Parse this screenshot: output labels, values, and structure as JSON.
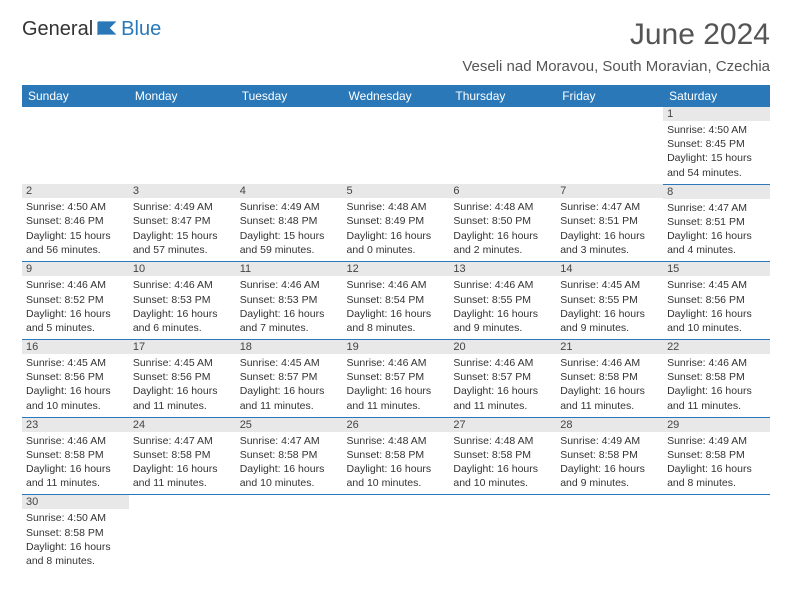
{
  "logo": {
    "part1": "General",
    "part2": "Blue"
  },
  "title": "June 2024",
  "location": "Veseli nad Moravou, South Moravian, Czechia",
  "colors": {
    "header_bg": "#2a78b8",
    "header_text": "#ffffff",
    "daynum_bg": "#e8e8e8",
    "border": "#2a78b8",
    "text": "#333333"
  },
  "weekdays": [
    "Sunday",
    "Monday",
    "Tuesday",
    "Wednesday",
    "Thursday",
    "Friday",
    "Saturday"
  ],
  "weeks": [
    [
      null,
      null,
      null,
      null,
      null,
      null,
      {
        "n": "1",
        "sr": "Sunrise: 4:50 AM",
        "ss": "Sunset: 8:45 PM",
        "dl": "Daylight: 15 hours and 54 minutes."
      }
    ],
    [
      {
        "n": "2",
        "sr": "Sunrise: 4:50 AM",
        "ss": "Sunset: 8:46 PM",
        "dl": "Daylight: 15 hours and 56 minutes."
      },
      {
        "n": "3",
        "sr": "Sunrise: 4:49 AM",
        "ss": "Sunset: 8:47 PM",
        "dl": "Daylight: 15 hours and 57 minutes."
      },
      {
        "n": "4",
        "sr": "Sunrise: 4:49 AM",
        "ss": "Sunset: 8:48 PM",
        "dl": "Daylight: 15 hours and 59 minutes."
      },
      {
        "n": "5",
        "sr": "Sunrise: 4:48 AM",
        "ss": "Sunset: 8:49 PM",
        "dl": "Daylight: 16 hours and 0 minutes."
      },
      {
        "n": "6",
        "sr": "Sunrise: 4:48 AM",
        "ss": "Sunset: 8:50 PM",
        "dl": "Daylight: 16 hours and 2 minutes."
      },
      {
        "n": "7",
        "sr": "Sunrise: 4:47 AM",
        "ss": "Sunset: 8:51 PM",
        "dl": "Daylight: 16 hours and 3 minutes."
      },
      {
        "n": "8",
        "sr": "Sunrise: 4:47 AM",
        "ss": "Sunset: 8:51 PM",
        "dl": "Daylight: 16 hours and 4 minutes."
      }
    ],
    [
      {
        "n": "9",
        "sr": "Sunrise: 4:46 AM",
        "ss": "Sunset: 8:52 PM",
        "dl": "Daylight: 16 hours and 5 minutes."
      },
      {
        "n": "10",
        "sr": "Sunrise: 4:46 AM",
        "ss": "Sunset: 8:53 PM",
        "dl": "Daylight: 16 hours and 6 minutes."
      },
      {
        "n": "11",
        "sr": "Sunrise: 4:46 AM",
        "ss": "Sunset: 8:53 PM",
        "dl": "Daylight: 16 hours and 7 minutes."
      },
      {
        "n": "12",
        "sr": "Sunrise: 4:46 AM",
        "ss": "Sunset: 8:54 PM",
        "dl": "Daylight: 16 hours and 8 minutes."
      },
      {
        "n": "13",
        "sr": "Sunrise: 4:46 AM",
        "ss": "Sunset: 8:55 PM",
        "dl": "Daylight: 16 hours and 9 minutes."
      },
      {
        "n": "14",
        "sr": "Sunrise: 4:45 AM",
        "ss": "Sunset: 8:55 PM",
        "dl": "Daylight: 16 hours and 9 minutes."
      },
      {
        "n": "15",
        "sr": "Sunrise: 4:45 AM",
        "ss": "Sunset: 8:56 PM",
        "dl": "Daylight: 16 hours and 10 minutes."
      }
    ],
    [
      {
        "n": "16",
        "sr": "Sunrise: 4:45 AM",
        "ss": "Sunset: 8:56 PM",
        "dl": "Daylight: 16 hours and 10 minutes."
      },
      {
        "n": "17",
        "sr": "Sunrise: 4:45 AM",
        "ss": "Sunset: 8:56 PM",
        "dl": "Daylight: 16 hours and 11 minutes."
      },
      {
        "n": "18",
        "sr": "Sunrise: 4:45 AM",
        "ss": "Sunset: 8:57 PM",
        "dl": "Daylight: 16 hours and 11 minutes."
      },
      {
        "n": "19",
        "sr": "Sunrise: 4:46 AM",
        "ss": "Sunset: 8:57 PM",
        "dl": "Daylight: 16 hours and 11 minutes."
      },
      {
        "n": "20",
        "sr": "Sunrise: 4:46 AM",
        "ss": "Sunset: 8:57 PM",
        "dl": "Daylight: 16 hours and 11 minutes."
      },
      {
        "n": "21",
        "sr": "Sunrise: 4:46 AM",
        "ss": "Sunset: 8:58 PM",
        "dl": "Daylight: 16 hours and 11 minutes."
      },
      {
        "n": "22",
        "sr": "Sunrise: 4:46 AM",
        "ss": "Sunset: 8:58 PM",
        "dl": "Daylight: 16 hours and 11 minutes."
      }
    ],
    [
      {
        "n": "23",
        "sr": "Sunrise: 4:46 AM",
        "ss": "Sunset: 8:58 PM",
        "dl": "Daylight: 16 hours and 11 minutes."
      },
      {
        "n": "24",
        "sr": "Sunrise: 4:47 AM",
        "ss": "Sunset: 8:58 PM",
        "dl": "Daylight: 16 hours and 11 minutes."
      },
      {
        "n": "25",
        "sr": "Sunrise: 4:47 AM",
        "ss": "Sunset: 8:58 PM",
        "dl": "Daylight: 16 hours and 10 minutes."
      },
      {
        "n": "26",
        "sr": "Sunrise: 4:48 AM",
        "ss": "Sunset: 8:58 PM",
        "dl": "Daylight: 16 hours and 10 minutes."
      },
      {
        "n": "27",
        "sr": "Sunrise: 4:48 AM",
        "ss": "Sunset: 8:58 PM",
        "dl": "Daylight: 16 hours and 10 minutes."
      },
      {
        "n": "28",
        "sr": "Sunrise: 4:49 AM",
        "ss": "Sunset: 8:58 PM",
        "dl": "Daylight: 16 hours and 9 minutes."
      },
      {
        "n": "29",
        "sr": "Sunrise: 4:49 AM",
        "ss": "Sunset: 8:58 PM",
        "dl": "Daylight: 16 hours and 8 minutes."
      }
    ],
    [
      {
        "n": "30",
        "sr": "Sunrise: 4:50 AM",
        "ss": "Sunset: 8:58 PM",
        "dl": "Daylight: 16 hours and 8 minutes."
      },
      null,
      null,
      null,
      null,
      null,
      null
    ]
  ]
}
